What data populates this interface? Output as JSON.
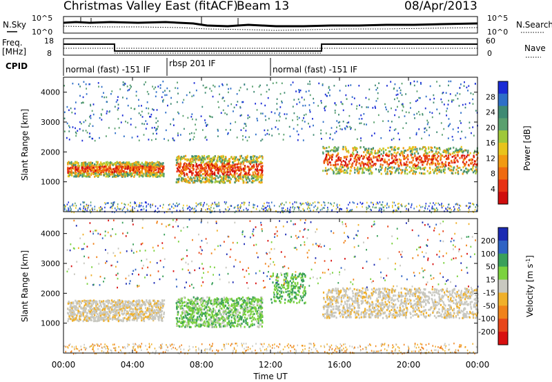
{
  "header": {
    "title": "Christmas Valley East (fitACF)",
    "beam": "Beam 13",
    "date": "08/Apr/2013"
  },
  "top_panels": {
    "nsky_label": "N.Sky",
    "nsearch_label": "N.Search",
    "freq_label_line1": "Freq.",
    "freq_label_line2": "[MHz]",
    "nave_label": "Nave",
    "cpid_label": "CPID",
    "nsky_ticks": [
      "10^5",
      "10^0"
    ],
    "nsearch_ticks": [
      "10^5",
      "10^0"
    ],
    "freq_ticks": [
      "18",
      "8"
    ],
    "nave_ticks": [
      "60",
      "0"
    ],
    "cpid_segments": [
      {
        "start": 0,
        "end": 6,
        "label": "normal (fast) -151 IF"
      },
      {
        "start": 6,
        "end": 12,
        "label": "rbsp 201 IF"
      },
      {
        "start": 12,
        "end": 24,
        "label": "normal (fast) -151 IF"
      }
    ]
  },
  "chart_data": [
    {
      "type": "heatmap",
      "name": "power",
      "ylabel": "Slant Range [km]",
      "xlabel": "Time UT",
      "xlim": [
        0,
        24
      ],
      "ylim": [
        0,
        4500
      ],
      "yticks": [
        1000,
        2000,
        3000,
        4000
      ],
      "xticks": [
        0,
        4,
        8,
        12,
        16,
        20,
        24
      ],
      "xtick_labels": [
        "00:00",
        "04:00",
        "08:00",
        "12:00",
        "16:00",
        "20:00",
        "00:00"
      ],
      "colorbar": {
        "label": "Power [dB]",
        "ticks": [
          4,
          8,
          12,
          16,
          20,
          24,
          28
        ],
        "range": [
          0,
          30
        ],
        "colors": [
          "#1a2bd6",
          "#2e6fc8",
          "#3f8a73",
          "#5aa06e",
          "#9fc83a",
          "#e8c41c",
          "#f29a12",
          "#f06a10",
          "#e83214",
          "#d00d0d"
        ]
      },
      "description_bands": [
        {
          "t0": 0.2,
          "t1": 5.8,
          "r0": 1200,
          "r1": 1700,
          "level": "high"
        },
        {
          "t0": 6.5,
          "t1": 11.5,
          "r0": 1000,
          "r1": 1900,
          "level": "high"
        },
        {
          "t0": 15.0,
          "t1": 24,
          "r0": 1300,
          "r1": 2200,
          "level": "high"
        }
      ]
    },
    {
      "type": "heatmap",
      "name": "velocity",
      "ylabel": "Slant Range [km]",
      "xlabel": "Time UT",
      "xlim": [
        0,
        24
      ],
      "ylim": [
        0,
        4500
      ],
      "yticks": [
        1000,
        2000,
        3000,
        4000
      ],
      "xticks": [
        0,
        4,
        8,
        12,
        16,
        20,
        24
      ],
      "xtick_labels": [
        "00:00",
        "04:00",
        "08:00",
        "12:00",
        "16:00",
        "20:00",
        "00:00"
      ],
      "colorbar": {
        "label": "Velocity [m s^-1]",
        "ticks": [
          200,
          100,
          50,
          15,
          -15,
          -50,
          -100,
          -200
        ],
        "tick_labels": [
          "200",
          "100",
          "50",
          "15",
          "-15",
          "-50",
          "-100",
          "-200"
        ],
        "colors": [
          "#1c2ab3",
          "#2f63c4",
          "#3aa05a",
          "#7bd23f",
          "#c8c8c0",
          "#f0b02a",
          "#f0821a",
          "#e8461a",
          "#d81010"
        ]
      }
    }
  ],
  "xlabel": "Time UT"
}
